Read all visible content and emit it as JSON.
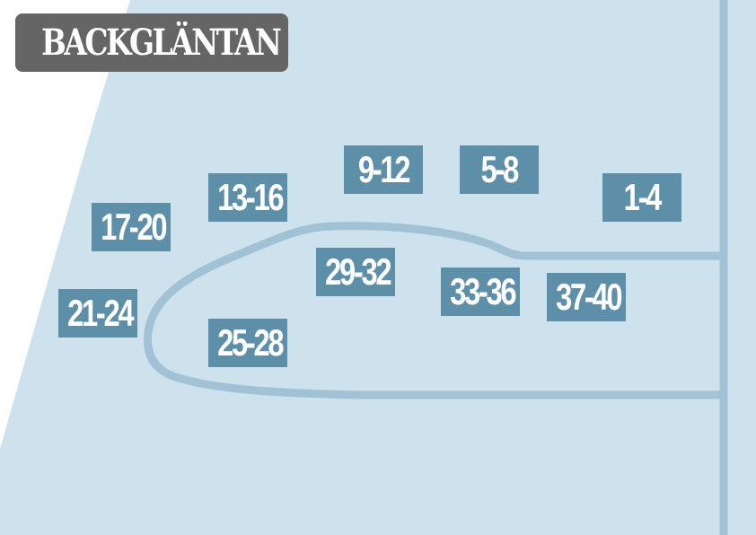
{
  "title": "BACKGLÄNTAN",
  "colors": {
    "land": "#cde2ed",
    "road": "#a0c2d4",
    "lot": "#5e8fa8",
    "title_bg": "#666566",
    "outside": "#ffffff"
  },
  "lots": [
    {
      "label": "1-4"
    },
    {
      "label": "5-8"
    },
    {
      "label": "9-12"
    },
    {
      "label": "13-16"
    },
    {
      "label": "17-20"
    },
    {
      "label": "21-24"
    },
    {
      "label": "25-28"
    },
    {
      "label": "29-32"
    },
    {
      "label": "33-36"
    },
    {
      "label": "37-40"
    }
  ]
}
